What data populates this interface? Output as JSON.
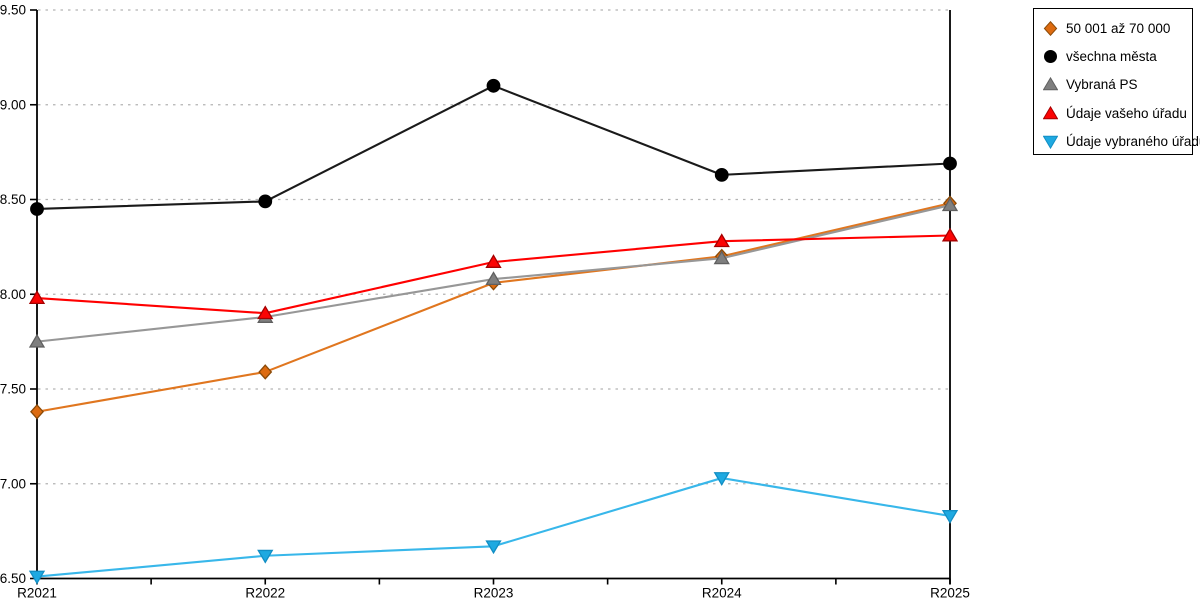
{
  "chart_data": {
    "type": "line",
    "title": "",
    "xlabel": "",
    "ylabel": "",
    "categories": [
      "R2021",
      "R2022",
      "R2023",
      "R2024",
      "R2025"
    ],
    "series": [
      {
        "name": "50 001 až 70 000",
        "marker": "diamond",
        "line_color": "#e0761f",
        "marker_fill": "#dd6b10",
        "marker_stroke": "#8a4a08",
        "values": [
          7.38,
          7.59,
          8.06,
          8.2,
          8.48
        ]
      },
      {
        "name": "všechna města",
        "marker": "circle",
        "line_color": "#1a1a1a",
        "marker_fill": "#000000",
        "marker_stroke": "#000000",
        "values": [
          8.45,
          8.49,
          9.1,
          8.63,
          8.69
        ]
      },
      {
        "name": "Vybraná PS",
        "marker": "triangle-up",
        "line_color": "#979797",
        "marker_fill": "#7f7f7f",
        "marker_stroke": "#606060",
        "values": [
          7.75,
          7.88,
          8.08,
          8.19,
          8.47
        ]
      },
      {
        "name": "Údaje vašeho úřadu",
        "marker": "triangle-up",
        "line_color": "#ff0000",
        "marker_fill": "#fb0404",
        "marker_stroke": "#a50000",
        "values": [
          7.98,
          7.9,
          8.17,
          8.28,
          8.31
        ]
      },
      {
        "name": "Údaje vybraného úřadu",
        "marker": "triangle-down",
        "line_color": "#38b7ea",
        "marker_fill": "#1ea9e1",
        "marker_stroke": "#128ec4",
        "values": [
          6.51,
          6.62,
          6.67,
          7.03,
          6.83
        ]
      }
    ],
    "ylim": [
      6.5,
      9.5
    ],
    "ytick_step": 0.5,
    "ytick_labels": [
      "6.50",
      "7.00",
      "7.50",
      "8.00",
      "8.50",
      "9.00",
      "9.50"
    ],
    "grid": "horizontal-dotted",
    "gridline_color": "#b3b3b3",
    "axis_color": "#000000",
    "legend_position": "outside-top-right"
  }
}
